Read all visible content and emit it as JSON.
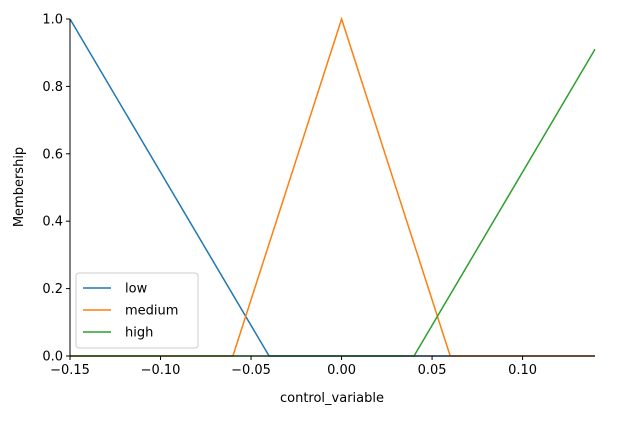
{
  "chart_data": {
    "type": "line",
    "title": "",
    "xlabel": "control_variable",
    "ylabel": "Membership",
    "xlim": [
      -0.15,
      0.14
    ],
    "ylim": [
      0.0,
      1.0
    ],
    "xticks": [
      -0.15,
      -0.1,
      -0.05,
      0.0,
      0.05,
      0.1
    ],
    "xtick_labels": [
      "−0.15",
      "−0.10",
      "−0.05",
      "0.00",
      "0.05",
      "0.10"
    ],
    "yticks": [
      0.0,
      0.2,
      0.4,
      0.6,
      0.8,
      1.0
    ],
    "ytick_labels": [
      "0.0",
      "0.2",
      "0.4",
      "0.6",
      "0.8",
      "1.0"
    ],
    "grid": false,
    "legend_position": "lower-left",
    "series": [
      {
        "name": "low",
        "color": "#1f77b4",
        "points": [
          [
            -0.15,
            1.0
          ],
          [
            -0.04,
            0.0
          ],
          [
            0.14,
            0.0
          ]
        ]
      },
      {
        "name": "medium",
        "color": "#ff7f0e",
        "points": [
          [
            -0.15,
            0.0
          ],
          [
            -0.06,
            0.0
          ],
          [
            0.0,
            1.0
          ],
          [
            0.06,
            0.0
          ],
          [
            0.14,
            0.0
          ]
        ]
      },
      {
        "name": "high",
        "color": "#2ca02c",
        "points": [
          [
            -0.15,
            0.0
          ],
          [
            0.04,
            0.0
          ],
          [
            0.14,
            0.91
          ]
        ]
      }
    ]
  }
}
